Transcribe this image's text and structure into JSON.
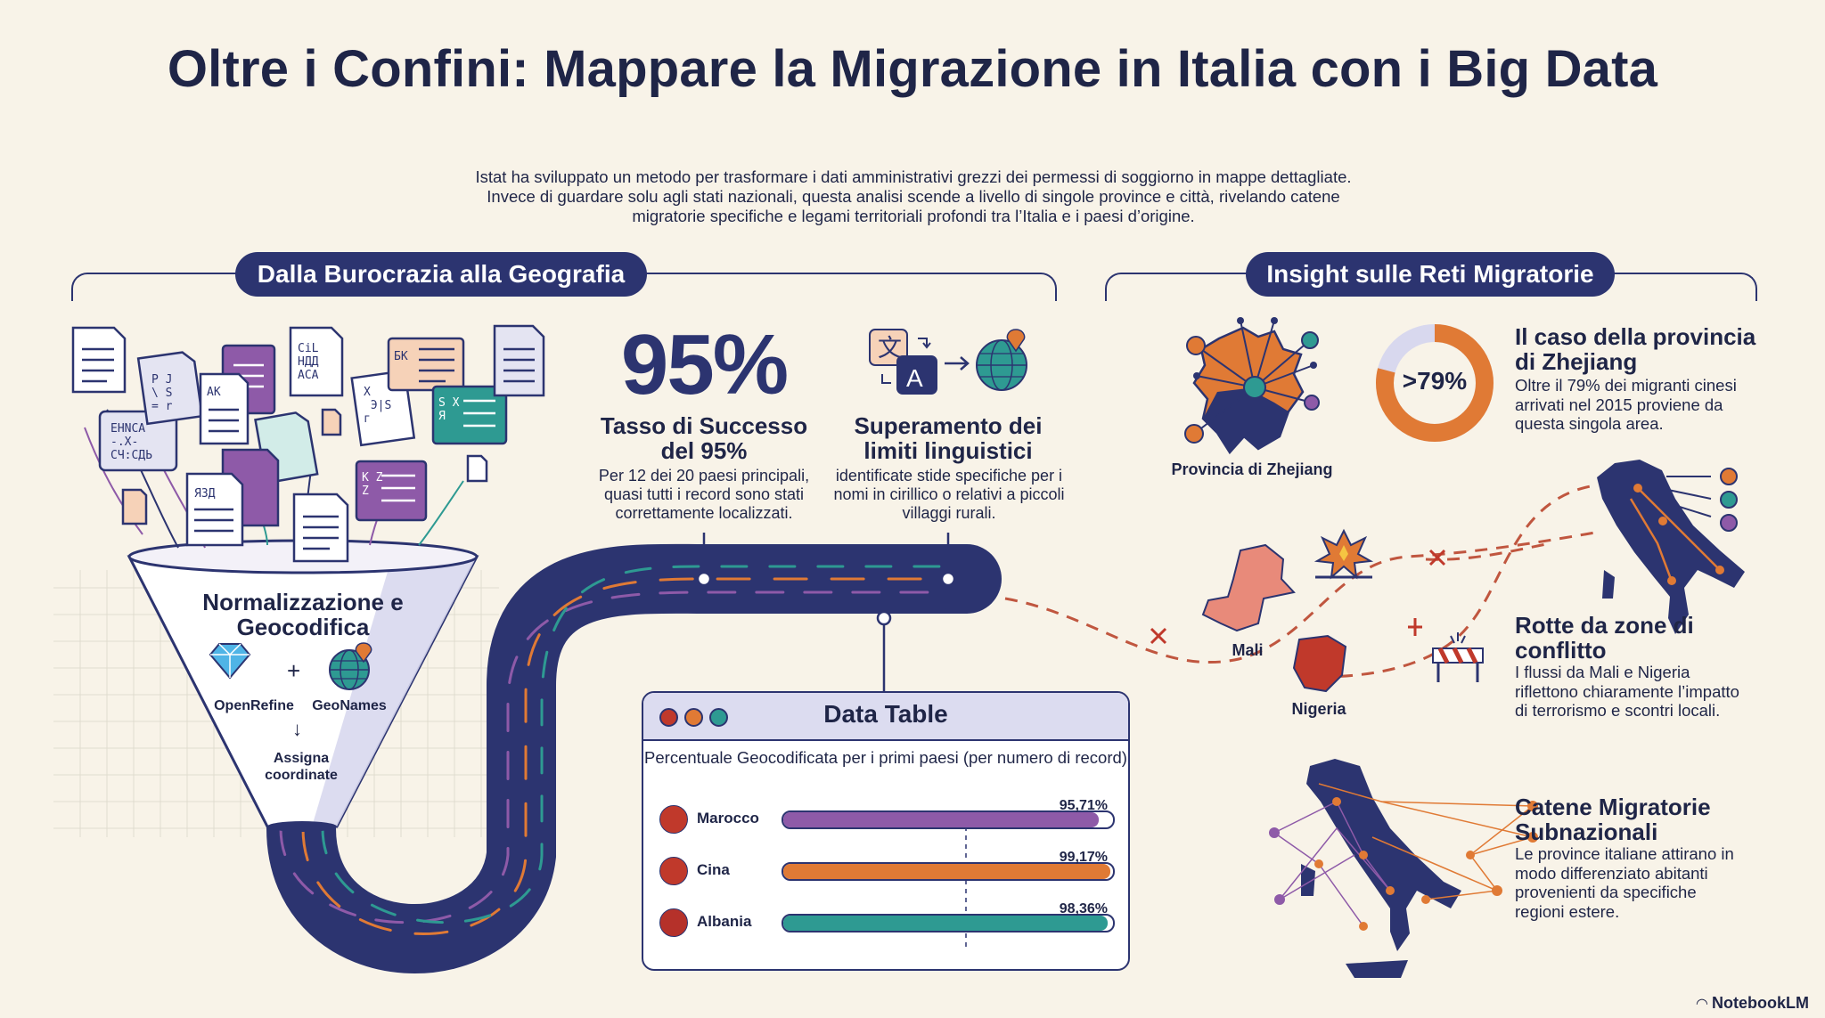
{
  "title": "Oltre i Confini: Mappare la Migrazione in Italia con i Big Data",
  "intro": "Istat ha sviluppato un metodo per trasformare i dati amministrativi grezzi dei permessi di soggiorno in mappe dettagliate. Invece di guardare solu agli stati nazionali, questa analisi scende a livello di singole province e città, rivelando catene migratorie specifiche e legami territoriali profondi tra l’Italia e i paesi d’origine.",
  "left_section": {
    "heading": "Dalla Burocrazia alla Geografia",
    "funnel_title": "Normalizzazione e Geocodifica",
    "tool_1": "OpenRefine",
    "tool_2": "GeoNames",
    "plus": "+",
    "arrow": "↓",
    "funnel_step": "Assigna coordinate",
    "doc_glyphs": [
      "EHNCA\n-.X-\nCЧ:CДЬ",
      "P J\n\\ S\n=  r",
      "АК",
      "CiL\nHДД\nACA",
      "БК",
      "ЯЗД",
      "X\n Э|S\nг",
      "S X\nЯ",
      "K Z\nZ"
    ],
    "stat_value": "95%",
    "stat_title": "Tasso di Successo del 95%",
    "stat_text": "Per 12 dei 20 paesi principali, quasi tutti i record sono stati correttamente localizzati.",
    "lang_glyph_1": "文",
    "lang_glyph_2": "A",
    "lang_title": "Superamento dei limiti linguistici",
    "lang_text": "identificate stide specifiche per i nomi in cirillico o relativi a piccoli villaggi rurali."
  },
  "data_table": {
    "title": "Data Table",
    "subtitle": "Percentuale Geocodificata per i primi paesi (per numero di record)",
    "rows": [
      {
        "country": "Marocco",
        "value_label": "95,71%",
        "value": 95.71,
        "color": "#8e5aa8"
      },
      {
        "country": "Cina",
        "value_label": "99,17%",
        "value": 99.17,
        "color": "#e07a35"
      },
      {
        "country": "Albania",
        "value_label": "98,36%",
        "value": 98.36,
        "color": "#2e9a92"
      }
    ]
  },
  "right_section": {
    "heading": "Insight sulle Reti Migratorie",
    "zhejiang_map_label": "Provincia di Zhejiang",
    "donut_value": ">79%",
    "donut_fraction": 0.79,
    "zhejiang_title": "Il caso della provincia di Zhejiang",
    "zhejiang_text": "Oltre il 79% dei migranti cinesi arrivati nel 2015 proviene da questa singola area.",
    "mali_label": "Mali",
    "nigeria_label": "Nigeria",
    "conflict_title": "Rotte da zone di conflitto",
    "conflict_text": "I flussi da Mali e Nigeria riflettono chiaramente l’impatto di terrorismo e scontri locali.",
    "chains_title": "Catene Migratorie Subnazionali",
    "chains_text": "Le province italiane attirano in modo differenziato abitanti provenienti da specifiche regioni estere."
  },
  "brand": "NotebookLM",
  "colors": {
    "navy": "#2c3470",
    "purple": "#8e5aa8",
    "orange": "#e07a35",
    "teal": "#2e9a92",
    "red": "#c0392b",
    "background": "#f8f3e8"
  }
}
